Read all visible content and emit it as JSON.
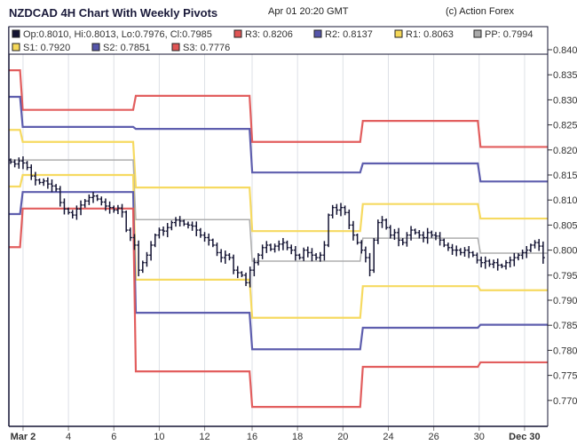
{
  "header": {
    "title": "NZDCAD 4H Chart With Weekly Pivots",
    "date": "Apr 01 20:20 GMT",
    "credit": "(c) Action Forex"
  },
  "legend": [
    {
      "label": "Op:0.8010, Hi:0.8013, Lo:0.7976, Cl:0.7985",
      "color": "#141433"
    },
    {
      "label": "R3: 0.8206",
      "color": "#e05555"
    },
    {
      "label": "R2: 0.8137",
      "color": "#5555aa"
    },
    {
      "label": "R1: 0.8063",
      "color": "#f5d858"
    },
    {
      "label": "PP: 0.7994",
      "color": "#aaaaaa"
    },
    {
      "label": "S1: 0.7920",
      "color": "#f5d858"
    },
    {
      "label": "S2: 0.7851",
      "color": "#5555aa"
    },
    {
      "label": "S3: 0.7776",
      "color": "#e05555"
    }
  ],
  "chart_data": {
    "type": "ohlc",
    "title": "NZDCAD 4H Chart With Weekly Pivots",
    "ylim": [
      0.765,
      0.84
    ],
    "yticks": [
      "0.770",
      "0.775",
      "0.780",
      "0.785",
      "0.790",
      "0.795",
      "0.800",
      "0.805",
      "0.810",
      "0.815",
      "0.820",
      "0.825",
      "0.830",
      "0.835",
      "0.840"
    ],
    "xticks": [
      {
        "label": "Mar 2",
        "bold": true,
        "bar": 3
      },
      {
        "label": "4",
        "bar": 14
      },
      {
        "label": "6",
        "bar": 25
      },
      {
        "label": "10",
        "bar": 36
      },
      {
        "label": "12",
        "bar": 47
      },
      {
        "label": "16",
        "bar": 58.5
      },
      {
        "label": "18",
        "bar": 69.5
      },
      {
        "label": "20",
        "bar": 80.5
      },
      {
        "label": "24",
        "bar": 91.5
      },
      {
        "label": "26",
        "bar": 102.5
      },
      {
        "label": "30",
        "bar": 113.5
      },
      {
        "label": "Dec 30",
        "bold": true,
        "bar": 124.5
      }
    ],
    "closes": [
      0.8176,
      0.8172,
      0.8178,
      0.8174,
      0.8165,
      0.8148,
      0.814,
      0.8135,
      0.8138,
      0.8132,
      0.8128,
      0.8122,
      0.8095,
      0.8082,
      0.8075,
      0.807,
      0.8082,
      0.809,
      0.8098,
      0.8105,
      0.8108,
      0.8102,
      0.8096,
      0.8088,
      0.8085,
      0.808,
      0.8084,
      0.8076,
      0.804,
      0.8025,
      0.801,
      0.796,
      0.7975,
      0.799,
      0.801,
      0.803,
      0.804,
      0.8038,
      0.8045,
      0.8055,
      0.806,
      0.8058,
      0.8052,
      0.805,
      0.8048,
      0.804,
      0.803,
      0.8025,
      0.802,
      0.801,
      0.7995,
      0.7985,
      0.799,
      0.7985,
      0.796,
      0.7955,
      0.795,
      0.7935,
      0.796,
      0.7975,
      0.799,
      0.8005,
      0.801,
      0.8002,
      0.8008,
      0.8012,
      0.8015,
      0.8005,
      0.8,
      0.799,
      0.7985,
      0.8,
      0.7995,
      0.799,
      0.7985,
      0.799,
      0.801,
      0.807,
      0.8085,
      0.808,
      0.8085,
      0.8075,
      0.805,
      0.803,
      0.8015,
      0.8,
      0.7985,
      0.796,
      0.802,
      0.8055,
      0.806,
      0.8045,
      0.803,
      0.8035,
      0.802,
      0.8015,
      0.803,
      0.804,
      0.8035,
      0.803,
      0.8025,
      0.8035,
      0.803,
      0.8028,
      0.802,
      0.801,
      0.8005,
      0.8,
      0.8,
      0.7995,
      0.8,
      0.7995,
      0.799,
      0.798,
      0.7975,
      0.7978,
      0.7972,
      0.7975,
      0.797,
      0.7968,
      0.7975,
      0.798,
      0.7985,
      0.799,
      0.7995,
      0.8,
      0.801,
      0.8015,
      0.8008,
      0.7985
    ],
    "pivot_week_starts": [
      0,
      2.6,
      30,
      58.2,
      85,
      113.5
    ],
    "pivots": {
      "R3": [
        0.8359,
        0.828,
        0.8308,
        0.8216,
        0.8258,
        0.8206
      ],
      "R2": [
        0.8306,
        0.8246,
        0.8242,
        0.8155,
        0.8173,
        0.8137
      ],
      "R1": [
        0.824,
        0.8216,
        0.8125,
        0.8038,
        0.8092,
        0.8063
      ],
      "PP": [
        0.818,
        0.818,
        0.8061,
        0.7978,
        0.8024,
        0.7994
      ],
      "S1": [
        0.8127,
        0.815,
        0.7941,
        0.7865,
        0.7928,
        0.792
      ],
      "S2": [
        0.8072,
        0.8116,
        0.7875,
        0.7802,
        0.7845,
        0.7851
      ],
      "S3": [
        0.8006,
        0.8083,
        0.7758,
        0.7687,
        0.7767,
        0.7776
      ]
    }
  }
}
